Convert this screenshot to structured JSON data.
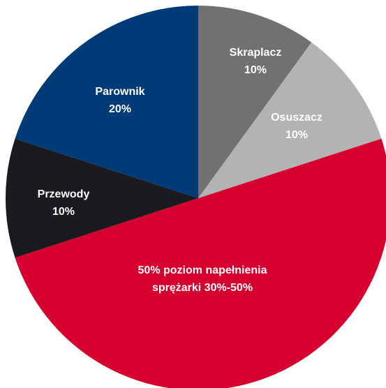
{
  "chart_data": {
    "type": "pie",
    "start": "12 o'clock, clockwise",
    "slices": [
      {
        "label_lines": [
          "Skraplacz",
          "10%"
        ],
        "value": 10,
        "color": "#717171"
      },
      {
        "label_lines": [
          "Osuszacz",
          "10%"
        ],
        "value": 10,
        "color": "#b3b3b3"
      },
      {
        "label_lines": [
          "50% poziom napełnienia",
          "sprężarki 30%-50%"
        ],
        "value": 50,
        "color": "#d6002f"
      },
      {
        "label_lines": [
          "Przewody",
          "10%"
        ],
        "value": 10,
        "color": "#1b1a1f"
      },
      {
        "label_lines": [
          "Parownik",
          "20%"
        ],
        "value": 20,
        "color": "#003b77"
      }
    ]
  }
}
